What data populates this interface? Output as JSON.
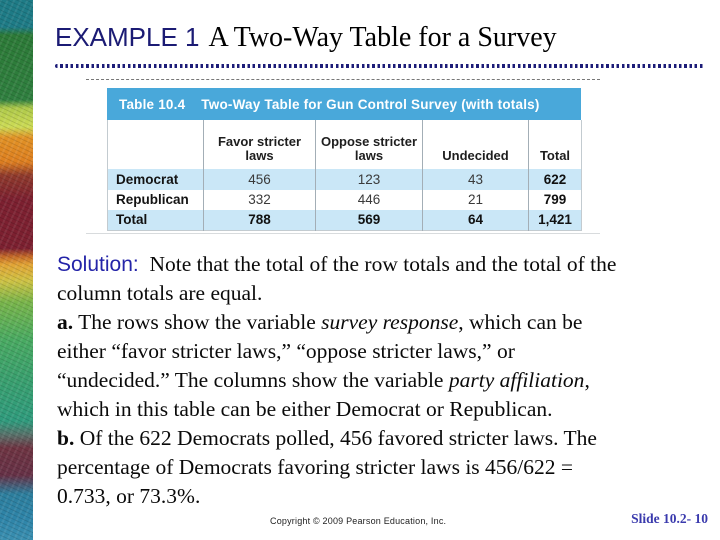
{
  "title": {
    "eyebrow": "EXAMPLE 1",
    "text": "A Two-Way Table for a Survey"
  },
  "table": {
    "caption_label": "Table 10.4",
    "caption_title": "Two-Way Table for Gun Control Survey (with totals)",
    "col_headers": [
      "Favor stricter laws",
      "Oppose stricter laws",
      "Undecided",
      "Total"
    ],
    "rows": [
      {
        "label": "Democrat",
        "favor": "456",
        "oppose": "123",
        "undecided": "43",
        "total": "622"
      },
      {
        "label": "Republican",
        "favor": "332",
        "oppose": "446",
        "undecided": "21",
        "total": "799"
      },
      {
        "label": "Total",
        "favor": "788",
        "oppose": "569",
        "undecided": "64",
        "total": "1,421"
      }
    ]
  },
  "chart_data": {
    "type": "table",
    "title": "Table 10.4 Two-Way Table for Gun Control Survey (with totals)",
    "columns": [
      "",
      "Favor stricter laws",
      "Oppose stricter laws",
      "Undecided",
      "Total"
    ],
    "rows": [
      [
        "Democrat",
        456,
        123,
        43,
        622
      ],
      [
        "Republican",
        332,
        446,
        21,
        799
      ],
      [
        "Total",
        788,
        569,
        64,
        1421
      ]
    ]
  },
  "solution": {
    "lines": [
      [
        {
          "t": "Solution:",
          "s": "label"
        },
        {
          "t": "  Note that the total of the row totals and the total of the",
          "s": "n"
        }
      ],
      [
        {
          "t": "column totals are equal.",
          "s": "n"
        }
      ],
      [
        {
          "t": "a.",
          "s": "b"
        },
        {
          "t": " The rows show the variable ",
          "s": "n"
        },
        {
          "t": "survey response",
          "s": "i"
        },
        {
          "t": ", which can be",
          "s": "n"
        }
      ],
      [
        {
          "t": "either “favor stricter laws,” “oppose stricter laws,” or",
          "s": "n"
        }
      ],
      [
        {
          "t": "“undecided.” The columns show the variable ",
          "s": "n"
        },
        {
          "t": "party affiliation",
          "s": "i"
        },
        {
          "t": ",",
          "s": "n"
        }
      ],
      [
        {
          "t": "which in this table can be either Democrat or Republican.",
          "s": "n"
        }
      ],
      [
        {
          "t": "b.",
          "s": "b"
        },
        {
          "t": " Of the 622 Democrats polled, 456 favored stricter laws. The",
          "s": "n"
        }
      ],
      [
        {
          "t": "percentage of Democrats favoring stricter laws is 456/622 =",
          "s": "n"
        }
      ],
      [
        {
          "t": "0.733, or 73.3%.",
          "s": "n"
        }
      ]
    ]
  },
  "footer": {
    "copyright": "Copyright © 2009 Pearson Education, Inc.",
    "slide_number": "Slide 10.2- 10"
  },
  "colors": {
    "accent_navy": "#1b1b74",
    "caption_bar_blue": "#49a8da",
    "row_light_blue": "#cae7f7",
    "solution_label_blue": "#2424a8",
    "slide_number_blue": "#3a3aad"
  }
}
